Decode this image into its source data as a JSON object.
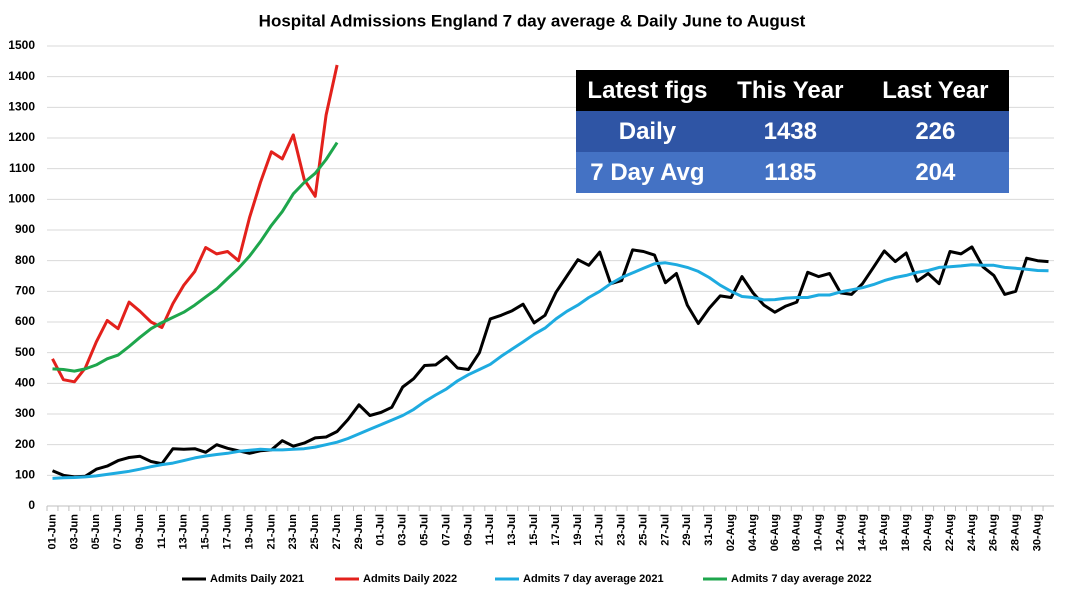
{
  "chart_data": {
    "type": "line",
    "title": "Hospital Admissions England 7 day average & Daily June to August",
    "categories": [
      "01-Jun",
      null,
      "03-Jun",
      null,
      "05-Jun",
      null,
      "07-Jun",
      null,
      "09-Jun",
      null,
      "11-Jun",
      null,
      "13-Jun",
      null,
      "15-Jun",
      null,
      "17-Jun",
      null,
      "19-Jun",
      null,
      "21-Jun",
      null,
      "23-Jun",
      null,
      "25-Jun",
      null,
      "27-Jun",
      null,
      "29-Jun",
      null,
      "01-Jul",
      null,
      "03-Jul",
      null,
      "05-Jul",
      null,
      "07-Jul",
      null,
      "09-Jul",
      null,
      "11-Jul",
      null,
      "13-Jul",
      null,
      "15-Jul",
      null,
      "17-Jul",
      null,
      "19-Jul",
      null,
      "21-Jul",
      null,
      "23-Jul",
      null,
      "25-Jul",
      null,
      "27-Jul",
      null,
      "29-Jul",
      null,
      "31-Jul",
      null,
      "02-Aug",
      null,
      "04-Aug",
      null,
      "06-Aug",
      null,
      "08-Aug",
      null,
      "10-Aug",
      null,
      "12-Aug",
      null,
      "14-Aug",
      null,
      "16-Aug",
      null,
      "18-Aug",
      null,
      "20-Aug",
      null,
      "22-Aug",
      null,
      "24-Aug",
      null,
      "26-Aug",
      null,
      "28-Aug",
      null,
      "30-Aug",
      null
    ],
    "series": [
      {
        "name": "Admits Daily 2021",
        "color": "#000000",
        "values": [
          115,
          100,
          95,
          97,
          120,
          130,
          148,
          158,
          162,
          145,
          138,
          187,
          185,
          187,
          175,
          200,
          188,
          180,
          172,
          180,
          183,
          213,
          195,
          205,
          222,
          225,
          243,
          282,
          330,
          295,
          305,
          322,
          388,
          415,
          458,
          460,
          487,
          450,
          445,
          500,
          610,
          622,
          637,
          658,
          597,
          622,
          697,
          750,
          803,
          785,
          828,
          725,
          735,
          835,
          830,
          818,
          728,
          758,
          655,
          595,
          645,
          685,
          680,
          748,
          695,
          655,
          632,
          652,
          665,
          762,
          748,
          758,
          695,
          690,
          725,
          778,
          832,
          797,
          825,
          733,
          758,
          725,
          830,
          822,
          845,
          780,
          752,
          690,
          700,
          808,
          800,
          797
        ]
      },
      {
        "name": "Admits Daily 2022",
        "color": "#e3211c",
        "values": [
          480,
          412,
          405,
          450,
          535,
          605,
          578,
          665,
          635,
          600,
          582,
          660,
          720,
          765,
          843,
          822,
          830,
          800,
          940,
          1055,
          1155,
          1132,
          1210,
          1065,
          1010,
          1275,
          1438,
          null,
          null,
          null,
          null,
          null,
          null,
          null,
          null,
          null,
          null,
          null,
          null,
          null,
          null,
          null,
          null,
          null,
          null,
          null,
          null,
          null,
          null,
          null,
          null,
          null,
          null,
          null,
          null,
          null,
          null,
          null,
          null,
          null,
          null,
          null,
          null,
          null,
          null,
          null,
          null,
          null,
          null,
          null,
          null,
          null,
          null,
          null,
          null,
          null,
          null,
          null,
          null,
          null,
          null,
          null,
          null,
          null,
          null,
          null,
          null,
          null,
          null,
          null,
          null,
          null
        ]
      },
      {
        "name": "Admits 7 day average 2021",
        "color": "#1eabe0",
        "values": [
          90,
          92,
          93,
          95,
          98,
          103,
          108,
          113,
          120,
          128,
          135,
          140,
          148,
          157,
          163,
          168,
          172,
          178,
          182,
          185,
          183,
          183,
          185,
          187,
          192,
          200,
          208,
          220,
          235,
          250,
          265,
          280,
          295,
          315,
          340,
          362,
          382,
          408,
          428,
          445,
          462,
          488,
          512,
          535,
          560,
          580,
          610,
          635,
          655,
          680,
          700,
          725,
          745,
          760,
          775,
          790,
          793,
          787,
          778,
          765,
          745,
          720,
          700,
          683,
          680,
          672,
          673,
          678,
          680,
          680,
          688,
          688,
          698,
          705,
          712,
          722,
          735,
          745,
          752,
          762,
          768,
          778,
          780,
          783,
          787,
          785,
          785,
          778,
          775,
          772,
          768,
          767
        ]
      },
      {
        "name": "Admits 7 day average 2022",
        "color": "#1ea64c",
        "values": [
          447,
          445,
          440,
          447,
          460,
          480,
          492,
          520,
          550,
          578,
          598,
          615,
          632,
          655,
          682,
          708,
          742,
          775,
          815,
          862,
          915,
          960,
          1018,
          1055,
          1085,
          1130,
          1185,
          null,
          null,
          null,
          null,
          null,
          null,
          null,
          null,
          null,
          null,
          null,
          null,
          null,
          null,
          null,
          null,
          null,
          null,
          null,
          null,
          null,
          null,
          null,
          null,
          null,
          null,
          null,
          null,
          null,
          null,
          null,
          null,
          null,
          null,
          null,
          null,
          null,
          null,
          null,
          null,
          null,
          null,
          null,
          null,
          null,
          null,
          null,
          null,
          null,
          null,
          null,
          null,
          null,
          null,
          null,
          null,
          null,
          null,
          null,
          null,
          null,
          null,
          null,
          null,
          null
        ]
      }
    ],
    "ylim": [
      0,
      1500
    ],
    "yticks": [
      0,
      100,
      200,
      300,
      400,
      500,
      600,
      700,
      800,
      900,
      1000,
      1100,
      1200,
      1300,
      1400,
      1500
    ],
    "grid": true,
    "legend": "bottom",
    "table": {
      "header": [
        "Latest figs",
        "This Year",
        "Last Year"
      ],
      "rows": [
        [
          "Daily",
          "1438",
          "226"
        ],
        [
          "7 Day Avg",
          "1185",
          "204"
        ]
      ]
    }
  }
}
